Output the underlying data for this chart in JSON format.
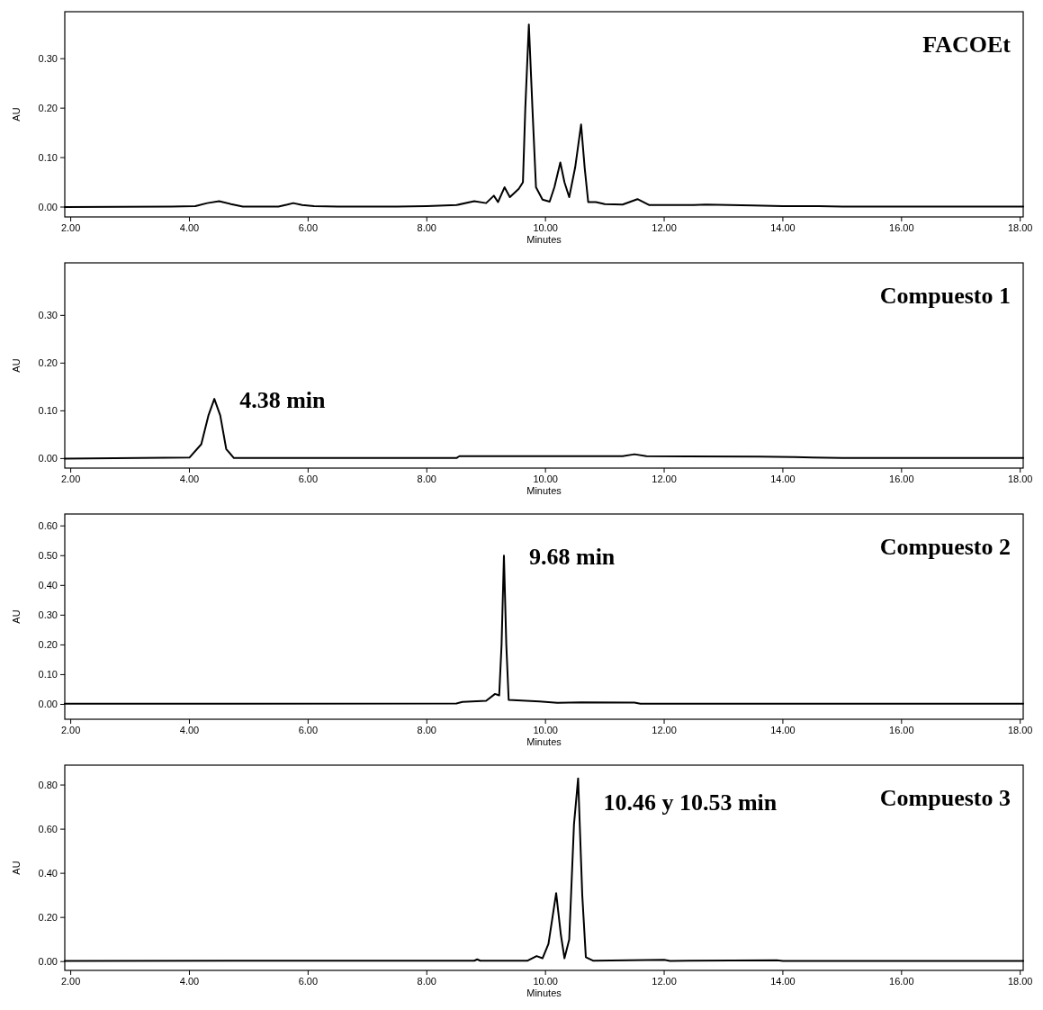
{
  "chart_data": [
    {
      "type": "line",
      "title": "FACOEt",
      "xlabel": "Minutes",
      "ylabel": "AU",
      "xlim": [
        1.9,
        18.05
      ],
      "ylim": [
        -0.02,
        0.395
      ],
      "xticks": [
        {
          "value": 2,
          "label": "2.00"
        },
        {
          "value": 4,
          "label": "4.00"
        },
        {
          "value": 6,
          "label": "6.00"
        },
        {
          "value": 8,
          "label": "8.00"
        },
        {
          "value": 10,
          "label": "10.00"
        },
        {
          "value": 12,
          "label": "12.00"
        },
        {
          "value": 14,
          "label": "14.00"
        },
        {
          "value": 16,
          "label": "16.00"
        },
        {
          "value": 18,
          "label": "18.00"
        }
      ],
      "yticks": [
        {
          "value": 0,
          "label": "0.00"
        },
        {
          "value": 0.1,
          "label": "0.10"
        },
        {
          "value": 0.2,
          "label": "0.20"
        },
        {
          "value": 0.3,
          "label": "0.30"
        }
      ],
      "grid": false,
      "marker": "none",
      "line_style": "solid",
      "series": [
        {
          "color": "#000000",
          "x": [
            1.9,
            3.7,
            4.1,
            4.3,
            4.5,
            4.7,
            4.9,
            5.5,
            5.65,
            5.75,
            5.9,
            6.1,
            6.5,
            7.5,
            8.0,
            8.5,
            8.8,
            9.0,
            9.13,
            9.2,
            9.31,
            9.4,
            9.55,
            9.62,
            9.66,
            9.72,
            9.78,
            9.84,
            9.95,
            10.07,
            10.15,
            10.25,
            10.32,
            10.4,
            10.5,
            10.6,
            10.66,
            10.72,
            10.85,
            11.0,
            11.3,
            11.55,
            11.75,
            12.5,
            12.7,
            13.5,
            14.0,
            14.6,
            15.0,
            18.05
          ],
          "values": [
            0,
            0.001,
            0.002,
            0.008,
            0.012,
            0.006,
            0.001,
            0.001,
            0.005,
            0.008,
            0.004,
            0.002,
            0.001,
            0.001,
            0.002,
            0.004,
            0.012,
            0.008,
            0.023,
            0.01,
            0.04,
            0.02,
            0.037,
            0.05,
            0.2,
            0.369,
            0.2,
            0.04,
            0.015,
            0.011,
            0.04,
            0.09,
            0.05,
            0.02,
            0.08,
            0.167,
            0.08,
            0.01,
            0.01,
            0.006,
            0.005,
            0.016,
            0.004,
            0.004,
            0.005,
            0.003,
            0.002,
            0.002,
            0.001,
            0.001
          ]
        }
      ]
    },
    {
      "type": "line",
      "title": "Compuesto 1",
      "xlabel": "Minutes",
      "ylabel": "AU",
      "xlim": [
        1.9,
        18.05
      ],
      "ylim": [
        -0.02,
        0.41
      ],
      "xticks": [
        {
          "value": 2,
          "label": "2.00"
        },
        {
          "value": 4,
          "label": "4.00"
        },
        {
          "value": 6,
          "label": "6.00"
        },
        {
          "value": 8,
          "label": "8.00"
        },
        {
          "value": 10,
          "label": "10.00"
        },
        {
          "value": 12,
          "label": "12.00"
        },
        {
          "value": 14,
          "label": "14.00"
        },
        {
          "value": 16,
          "label": "16.00"
        },
        {
          "value": 18,
          "label": "18.00"
        }
      ],
      "yticks": [
        {
          "value": 0,
          "label": "0.00"
        },
        {
          "value": 0.1,
          "label": "0.10"
        },
        {
          "value": 0.2,
          "label": "0.20"
        },
        {
          "value": 0.3,
          "label": "0.30"
        }
      ],
      "grid": false,
      "marker": "none",
      "line_style": "solid",
      "annotations": [
        {
          "text": "4.38 min",
          "x": 4.42,
          "y": 0.125
        }
      ],
      "series": [
        {
          "color": "#000000",
          "x": [
            1.9,
            4.0,
            4.2,
            4.32,
            4.42,
            4.52,
            4.62,
            4.75,
            8.5,
            8.55,
            11.3,
            11.5,
            11.7,
            13.6,
            14.2,
            14.5,
            15.0,
            18.05
          ],
          "values": [
            0,
            0.002,
            0.03,
            0.09,
            0.125,
            0.09,
            0.02,
            0.001,
            0.001,
            0.005,
            0.005,
            0.009,
            0.005,
            0.004,
            0.003,
            0.002,
            0.001,
            0.001
          ]
        }
      ]
    },
    {
      "type": "line",
      "title": "Compuesto 2",
      "xlabel": "Minutes",
      "ylabel": "AU",
      "xlim": [
        1.9,
        18.05
      ],
      "ylim": [
        -0.05,
        0.64
      ],
      "xticks": [
        {
          "value": 2,
          "label": "2.00"
        },
        {
          "value": 4,
          "label": "4.00"
        },
        {
          "value": 6,
          "label": "6.00"
        },
        {
          "value": 8,
          "label": "8.00"
        },
        {
          "value": 10,
          "label": "10.00"
        },
        {
          "value": 12,
          "label": "12.00"
        },
        {
          "value": 14,
          "label": "14.00"
        },
        {
          "value": 16,
          "label": "16.00"
        },
        {
          "value": 18,
          "label": "18.00"
        }
      ],
      "yticks": [
        {
          "value": 0,
          "label": "0.00"
        },
        {
          "value": 0.1,
          "label": "0.10"
        },
        {
          "value": 0.2,
          "label": "0.20"
        },
        {
          "value": 0.3,
          "label": "0.30"
        },
        {
          "value": 0.4,
          "label": "0.40"
        },
        {
          "value": 0.5,
          "label": "0.50"
        },
        {
          "value": 0.6,
          "label": "0.60"
        }
      ],
      "grid": false,
      "marker": "none",
      "line_style": "solid",
      "annotations": [
        {
          "text": "9.68 min",
          "x": 9.3,
          "y": 0.5
        }
      ],
      "series": [
        {
          "color": "#000000",
          "x": [
            1.9,
            8.5,
            8.6,
            9.0,
            9.15,
            9.22,
            9.26,
            9.3,
            9.34,
            9.38,
            9.9,
            10.2,
            10.6,
            11.5,
            11.6,
            18.05
          ],
          "values": [
            0.002,
            0.003,
            0.008,
            0.012,
            0.035,
            0.03,
            0.2,
            0.5,
            0.2,
            0.015,
            0.01,
            0.005,
            0.007,
            0.006,
            0.002,
            0.002
          ]
        }
      ]
    },
    {
      "type": "line",
      "title": "Compuesto 3",
      "xlabel": "Minutes",
      "ylabel": "AU",
      "xlim": [
        1.9,
        18.05
      ],
      "ylim": [
        -0.04,
        0.89
      ],
      "xticks": [
        {
          "value": 2,
          "label": "2.00"
        },
        {
          "value": 4,
          "label": "4.00"
        },
        {
          "value": 6,
          "label": "6.00"
        },
        {
          "value": 8,
          "label": "8.00"
        },
        {
          "value": 10,
          "label": "10.00"
        },
        {
          "value": 12,
          "label": "12.00"
        },
        {
          "value": 14,
          "label": "14.00"
        },
        {
          "value": 16,
          "label": "16.00"
        },
        {
          "value": 18,
          "label": "18.00"
        }
      ],
      "yticks": [
        {
          "value": 0,
          "label": "0.00"
        },
        {
          "value": 0.2,
          "label": "0.20"
        },
        {
          "value": 0.4,
          "label": "0.40"
        },
        {
          "value": 0.6,
          "label": "0.60"
        },
        {
          "value": 0.8,
          "label": "0.80"
        }
      ],
      "grid": false,
      "marker": "none",
      "line_style": "solid",
      "annotations": [
        {
          "text": "10.46 y 10.53 min",
          "x": 10.55,
          "y": 0.83
        }
      ],
      "series": [
        {
          "color": "#000000",
          "x": [
            1.9,
            8.8,
            8.85,
            8.9,
            9.7,
            9.85,
            9.95,
            10.05,
            10.18,
            10.26,
            10.32,
            10.4,
            10.48,
            10.55,
            10.62,
            10.68,
            10.8,
            12.0,
            12.1,
            13.9,
            14.0,
            18.05
          ],
          "values": [
            0.003,
            0.004,
            0.01,
            0.004,
            0.004,
            0.025,
            0.015,
            0.08,
            0.31,
            0.12,
            0.015,
            0.1,
            0.62,
            0.83,
            0.3,
            0.02,
            0.004,
            0.008,
            0.003,
            0.006,
            0.003,
            0.003
          ]
        }
      ]
    }
  ]
}
